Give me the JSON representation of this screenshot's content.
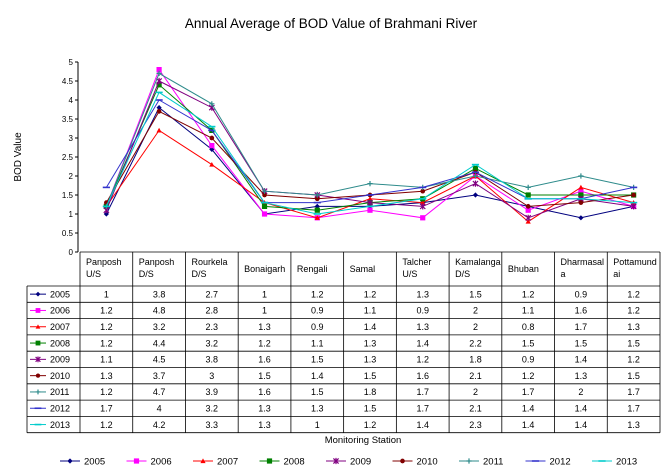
{
  "chart_data": {
    "type": "line",
    "title": "Annual Average of BOD Value of Brahmani River",
    "xlabel": "Monitoring Station",
    "ylabel": "BOD Value",
    "ylim": [
      0,
      5
    ],
    "ytick_step": 0.5,
    "yticks": [
      "0",
      "0.5",
      "1",
      "1.5",
      "2",
      "2.5",
      "3",
      "3.5",
      "4",
      "4.5",
      "5"
    ],
    "grid": false,
    "legend_position": "bottom",
    "categories": [
      [
        "Panposh",
        "U/S"
      ],
      [
        "Panposh",
        "D/S"
      ],
      [
        "Rourkela",
        "D/S"
      ],
      [
        "Bonaigarh"
      ],
      [
        "Rengali"
      ],
      [
        "Samal"
      ],
      [
        "Talcher",
        "U/S"
      ],
      [
        "Kamalanga",
        "D/S"
      ],
      [
        "Bhuban"
      ],
      [
        "Dharmasal",
        "a"
      ],
      [
        "Pottamund",
        "ai"
      ]
    ],
    "series": [
      {
        "name": "2005",
        "color": "#00007f",
        "marker": "diamond",
        "values": [
          "1",
          "3.8",
          "2.7",
          "1",
          "1.2",
          "1.2",
          "1.3",
          "1.5",
          "1.2",
          "0.9",
          "1.2"
        ]
      },
      {
        "name": "2006",
        "color": "#ff00ff",
        "marker": "square",
        "values": [
          "1.2",
          "4.8",
          "2.8",
          "1",
          "0.9",
          "1.1",
          "0.9",
          "2",
          "1.1",
          "1.6",
          "1.2"
        ]
      },
      {
        "name": "2007",
        "color": "#ff0000",
        "marker": "triangle",
        "values": [
          "1.2",
          "3.2",
          "2.3",
          "1.3",
          "0.9",
          "1.4",
          "1.3",
          "2",
          "0.8",
          "1.7",
          "1.3"
        ]
      },
      {
        "name": "2008",
        "color": "#008000",
        "marker": "square",
        "values": [
          "1.2",
          "4.4",
          "3.2",
          "1.2",
          "1.1",
          "1.3",
          "1.4",
          "2.2",
          "1.5",
          "1.5",
          "1.5"
        ]
      },
      {
        "name": "2009",
        "color": "#800080",
        "marker": "star",
        "values": [
          "1.1",
          "4.5",
          "3.8",
          "1.6",
          "1.5",
          "1.3",
          "1.2",
          "1.8",
          "0.9",
          "1.4",
          "1.2"
        ]
      },
      {
        "name": "2010",
        "color": "#800000",
        "marker": "circle",
        "values": [
          "1.3",
          "3.7",
          "3",
          "1.5",
          "1.4",
          "1.5",
          "1.6",
          "2.1",
          "1.2",
          "1.3",
          "1.5"
        ]
      },
      {
        "name": "2011",
        "color": "#2e8b8b",
        "marker": "plus",
        "values": [
          "1.2",
          "4.7",
          "3.9",
          "1.6",
          "1.5",
          "1.8",
          "1.7",
          "2",
          "1.7",
          "2",
          "1.7"
        ]
      },
      {
        "name": "2012",
        "color": "#3333cc",
        "marker": "dash",
        "values": [
          "1.7",
          "4",
          "3.2",
          "1.3",
          "1.3",
          "1.5",
          "1.7",
          "2.1",
          "1.4",
          "1.4",
          "1.7"
        ]
      },
      {
        "name": "2013",
        "color": "#00cccc",
        "marker": "dash",
        "values": [
          "1.2",
          "4.2",
          "3.3",
          "1.3",
          "1",
          "1.2",
          "1.4",
          "2.3",
          "1.4",
          "1.4",
          "1.3"
        ]
      }
    ]
  }
}
